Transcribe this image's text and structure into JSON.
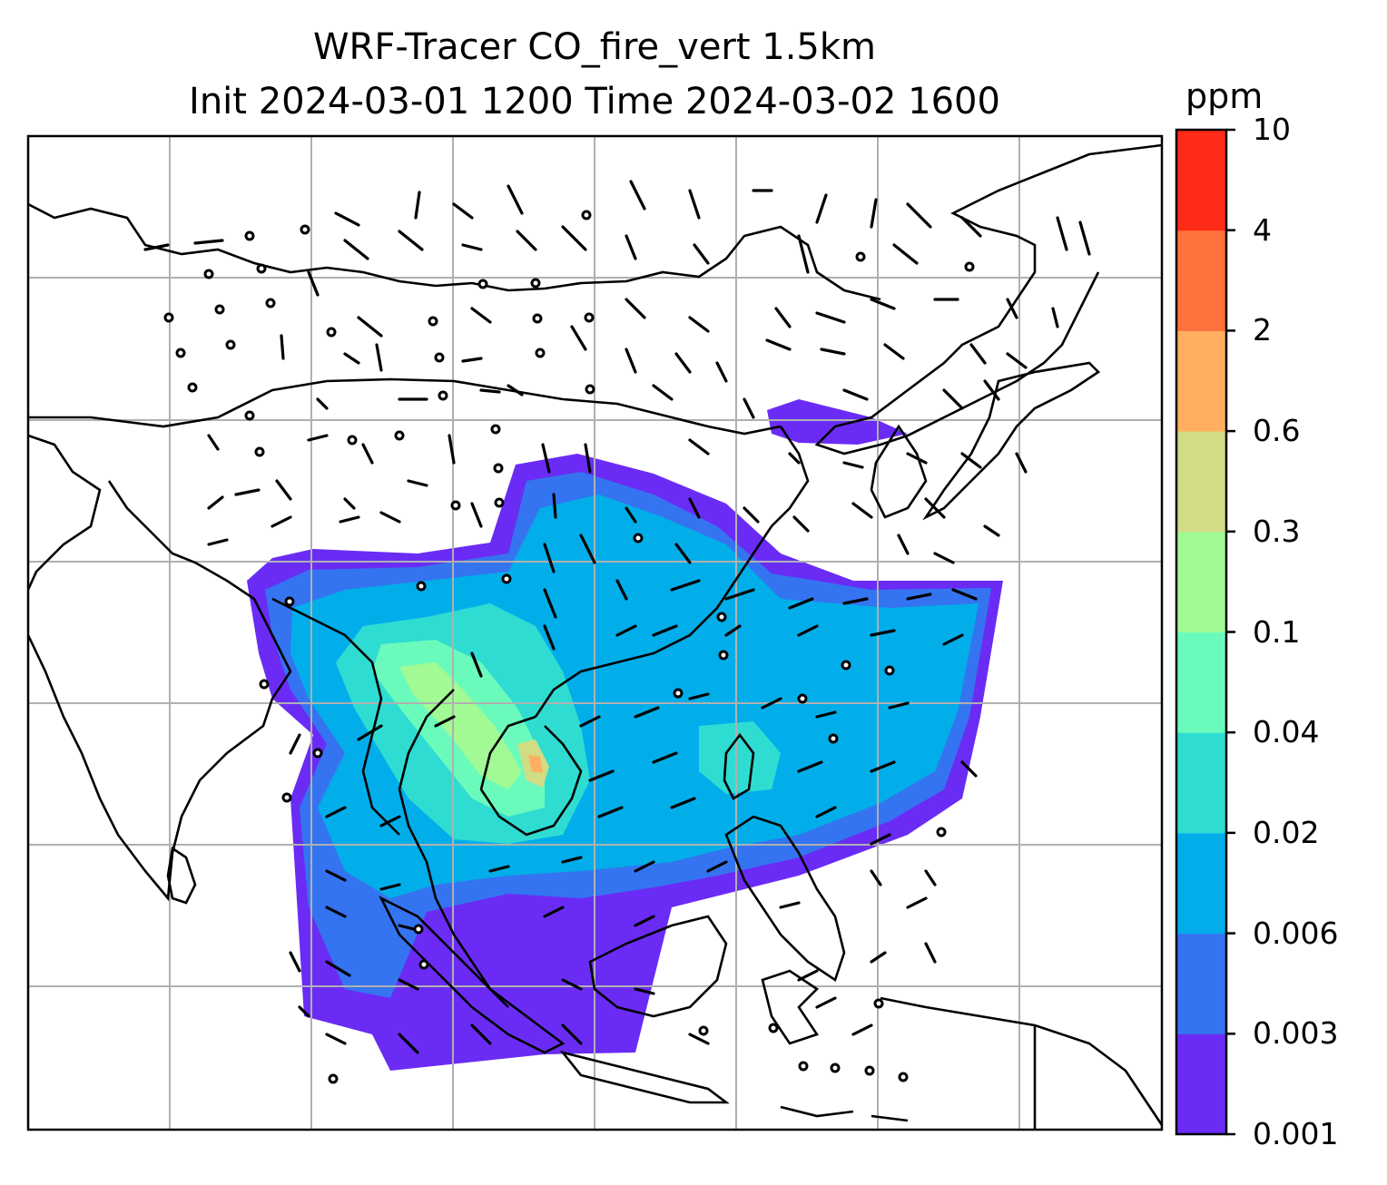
{
  "title": {
    "line1": "WRF-Tracer CO_fire_vert 1.5km",
    "line2": "Init 2024-03-01 1200 Time 2024-03-02 1600"
  },
  "colorbar": {
    "unit": "ppm",
    "levels": [
      "0.001",
      "0.003",
      "0.006",
      "0.02",
      "0.04",
      "0.1",
      "0.3",
      "0.6",
      "2",
      "4",
      "10"
    ],
    "colors": [
      "#6a2cf5",
      "#3474f0",
      "#02aeea",
      "#2fdcd2",
      "#6afbbc",
      "#a1fa94",
      "#d1dc85",
      "#ffaf5f",
      "#ff713c",
      "#ff2a17"
    ]
  },
  "map": {
    "field": "CO_fire_vert",
    "level": "1.5km",
    "grid": true,
    "features": [
      "coastlines",
      "country-borders",
      "wind-barbs",
      "calm-wind-circles",
      "tracer-concentration-shading"
    ]
  }
}
